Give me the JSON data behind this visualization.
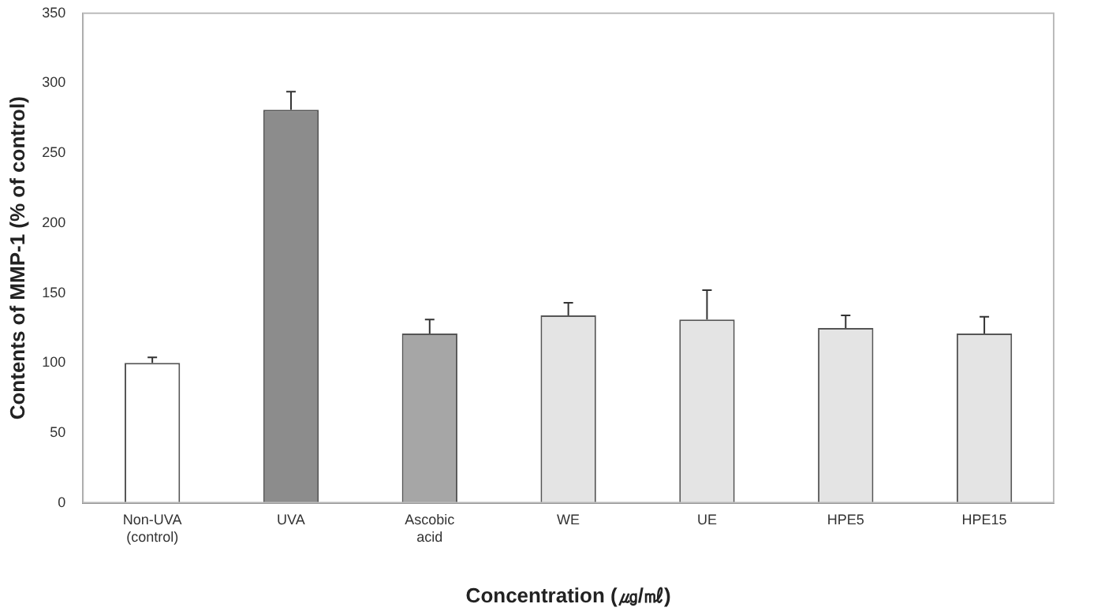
{
  "chart_data": {
    "type": "bar",
    "xlabel": "Concentration (㎍/㎖)",
    "ylabel": "Contents of MMP-1 (% of control)",
    "categories": [
      "Non-UVA\n(control)",
      "UVA",
      "Ascobic\nacid",
      "WE",
      "UE",
      "HPE5",
      "HPE15"
    ],
    "values": [
      100,
      281,
      121,
      134,
      131,
      125,
      121
    ],
    "colors": [
      "#ffffff",
      "#8c8c8c",
      "#a6a6a6",
      "#e4e4e4",
      "#e4e4e4",
      "#e4e4e4",
      "#e4e4e4"
    ],
    "errors": [
      [
        100,
        104
      ],
      [
        281,
        294
      ],
      [
        121,
        131
      ],
      [
        134,
        143
      ],
      [
        131,
        152
      ],
      [
        125,
        134
      ],
      [
        121,
        133
      ]
    ],
    "ylim": [
      0,
      350
    ],
    "yticks": [
      0,
      50,
      100,
      150,
      200,
      250,
      300,
      350
    ],
    "grid": false,
    "legend": false
  }
}
